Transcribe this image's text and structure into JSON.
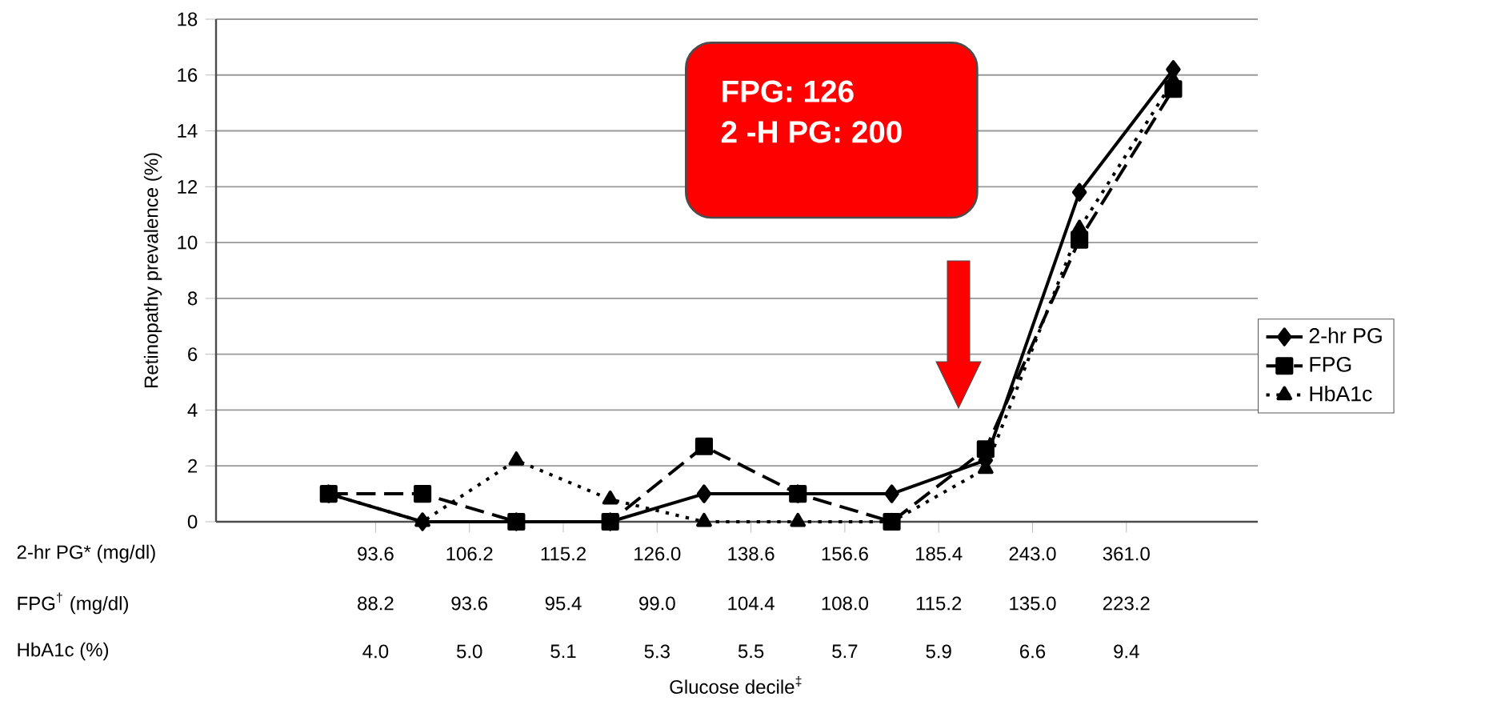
{
  "chart_data": {
    "type": "line",
    "ylabel": "Retinopathy prevalence (%)",
    "categories": [
      null,
      null,
      null,
      null,
      null,
      null,
      null,
      null,
      null,
      null
    ],
    "ylim": [
      0,
      18
    ],
    "yticks": [
      0,
      2,
      4,
      6,
      8,
      10,
      12,
      14,
      16,
      18
    ],
    "grid": "y",
    "legend": "right",
    "tick_labels": "y",
    "series": [
      {
        "name": "2-hr PG",
        "color": "#000000",
        "marker": "diamond",
        "line_style": "solid",
        "values": [
          1,
          0,
          0,
          0,
          1,
          1,
          1,
          2.2,
          11.8,
          16.2
        ]
      },
      {
        "name": "FPG",
        "color": "#000000",
        "marker": "square",
        "line_style": "dashed",
        "values": [
          1,
          1,
          0,
          0,
          2.7,
          1,
          0,
          2.6,
          10.1,
          15.5
        ]
      },
      {
        "name": "HbA1c",
        "color": "#000000",
        "marker": "triangle",
        "line_style": "dotted",
        "values": [
          1,
          0,
          2.2,
          0.8,
          0,
          0,
          0,
          1.9,
          10.5,
          15.8
        ]
      }
    ],
    "annotations": [
      "FPG: 126",
      "2 -H PG: 200",
      "Glucose decile$^{‡}$",
      "2-hr PG* (mg/dl)",
      "93.6",
      "106.2",
      "115.2",
      "126.0",
      "138.6",
      "156.6",
      "185.4",
      "243.0",
      "361.0",
      "FPG$^{†}$ (mg/dl)",
      "88.2",
      "93.6",
      "95.4",
      "99.0",
      "104.4",
      "108.0",
      "115.2",
      "135.0",
      "223.2",
      "HbA1c (%)",
      "4.0",
      "5.0",
      "5.1",
      "5.3",
      "5.5",
      "5.7",
      "5.9",
      "6.6",
      "9.4"
    ]
  }
}
